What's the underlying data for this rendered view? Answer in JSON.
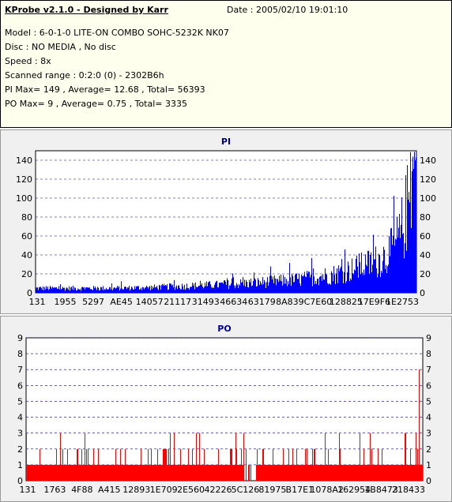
{
  "info": {
    "title": "KProbe v2.1.0 - Designed by Karr",
    "date": "Date : 2005/02/10 19:01:10",
    "lines": [
      "Model : 6-0-1-0 LITE-ON COMBO SOHC-5232K NK07",
      "Disc : NO MEDIA , No disc",
      "Speed : 8x",
      "Scanned range : 0:2:0 (0) - 2302B6h",
      "PI Max= 149 , Average= 12.68 , Total= 56393",
      "PO Max= 9 , Average= 0.75 , Total= 3335"
    ]
  },
  "colors": {
    "pi_bar": "#0000ff",
    "po_bar": "#ff0000",
    "plot_bg": "#ffffff",
    "grid": "#0000a0",
    "panel_bg": "#f0f0f0"
  },
  "chart_data": [
    {
      "type": "bar",
      "title": "PI",
      "ylim": [
        0,
        150
      ],
      "yticks": [
        0,
        20,
        40,
        60,
        80,
        100,
        120,
        140
      ],
      "xtick_labels": [
        "131",
        "1955",
        "5297",
        "AE45",
        "14057",
        "21117",
        "31493",
        "46634",
        "63179",
        "8A839",
        "C7E60",
        "128825",
        "17E9F6",
        "1E2753"
      ],
      "grid": true,
      "envelope": [
        {
          "x": 0.0,
          "y": 6
        },
        {
          "x": 0.1,
          "y": 6
        },
        {
          "x": 0.2,
          "y": 6
        },
        {
          "x": 0.3,
          "y": 7
        },
        {
          "x": 0.4,
          "y": 9
        },
        {
          "x": 0.5,
          "y": 11
        },
        {
          "x": 0.6,
          "y": 14
        },
        {
          "x": 0.7,
          "y": 18
        },
        {
          "x": 0.78,
          "y": 24
        },
        {
          "x": 0.84,
          "y": 32
        },
        {
          "x": 0.89,
          "y": 40
        },
        {
          "x": 0.93,
          "y": 52
        },
        {
          "x": 0.955,
          "y": 70
        },
        {
          "x": 0.97,
          "y": 95
        },
        {
          "x": 0.98,
          "y": 120
        },
        {
          "x": 0.99,
          "y": 135
        },
        {
          "x": 1.0,
          "y": 140
        }
      ],
      "max": 149,
      "average": 12.68,
      "total": 56393
    },
    {
      "type": "bar",
      "title": "PO",
      "ylim": [
        0,
        9
      ],
      "yticks": [
        0,
        1,
        2,
        3,
        4,
        5,
        6,
        7,
        8,
        9
      ],
      "xtick_labels": [
        "131",
        "1763",
        "4F88",
        "A415",
        "12893",
        "1E709",
        "2E560",
        "42226",
        "5C126",
        "81975",
        "B17E1",
        "1078A2",
        "162954",
        "1B8473",
        "218433"
      ],
      "grid": true,
      "baseline": 1,
      "max": 9,
      "average": 0.75,
      "total": 3335
    }
  ]
}
